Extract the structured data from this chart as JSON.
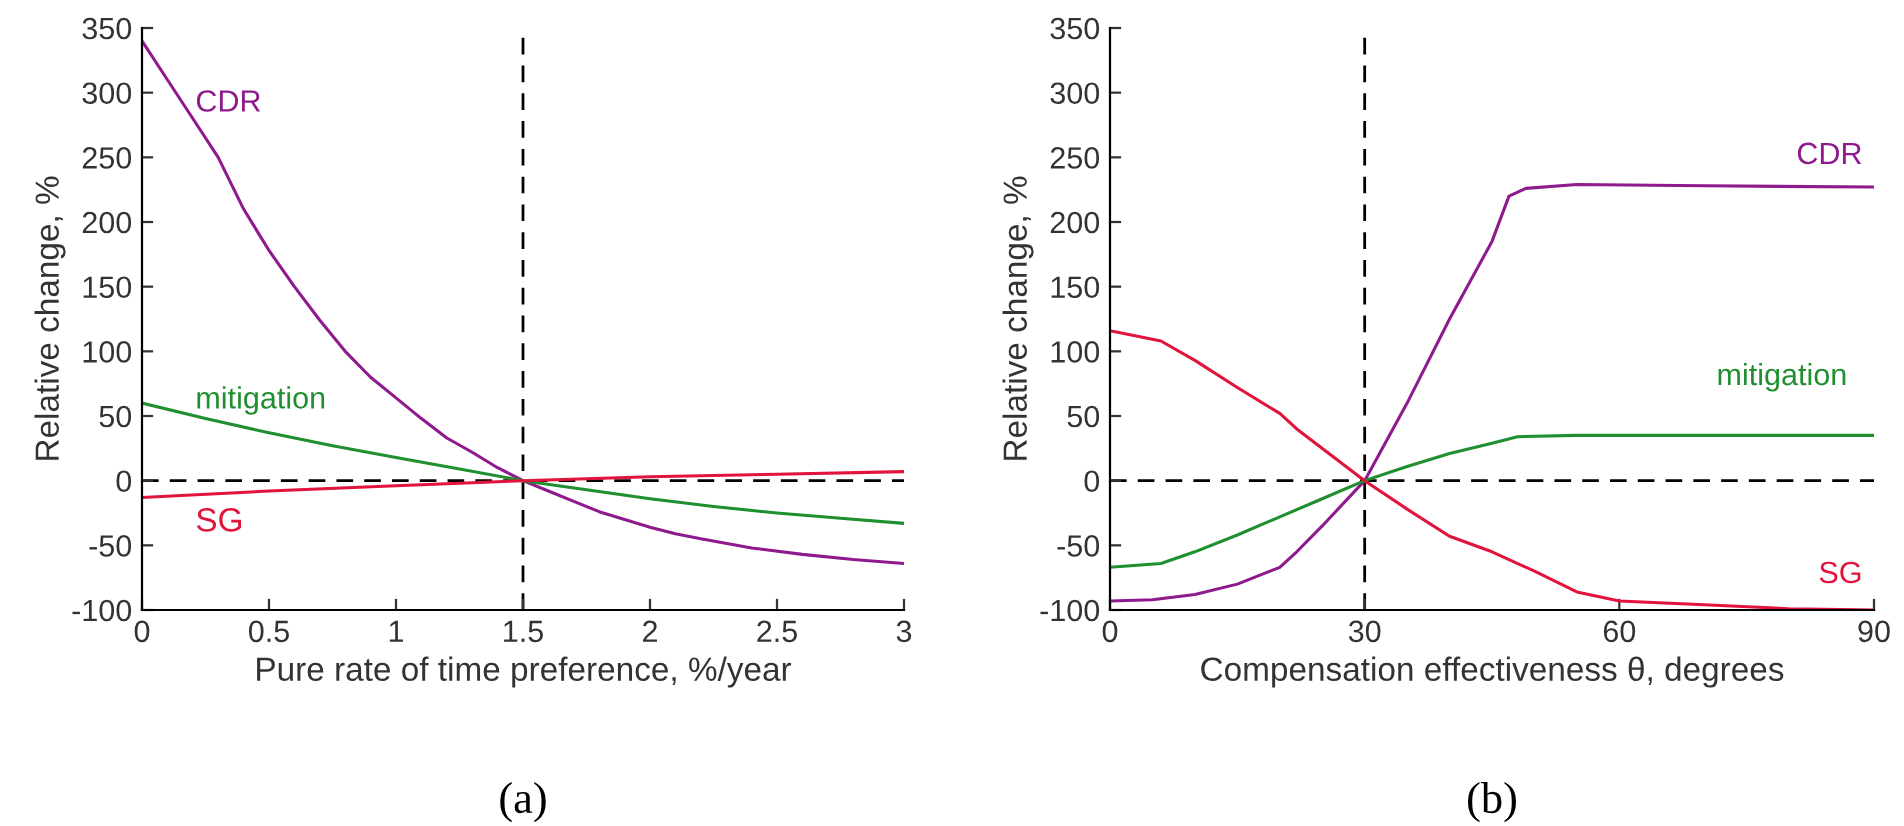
{
  "chart_data": [
    {
      "type": "line",
      "xlabel": "Pure rate of time preference, %/year",
      "ylabel": "Relative change, %",
      "xlim": [
        0,
        3
      ],
      "xticks": [
        0,
        0.5,
        1,
        1.5,
        2,
        2.5,
        3
      ],
      "ylim": [
        -100,
        350
      ],
      "yticks": [
        -100,
        -50,
        0,
        50,
        100,
        150,
        200,
        250,
        300,
        350
      ],
      "grid": false,
      "legend": false,
      "annotations": [
        "(a)"
      ],
      "ref_lines": [
        {
          "axis": "y",
          "value": 0,
          "color": "#000000",
          "line_style": "dashed"
        },
        {
          "axis": "x",
          "value": 1.5,
          "color": "#000000",
          "line_style": "dashed"
        }
      ],
      "series": [
        {
          "name": "CDR",
          "color": "#8e1a8e",
          "x": [
            0,
            0.1,
            0.2,
            0.3,
            0.4,
            0.5,
            0.6,
            0.7,
            0.8,
            0.9,
            1.0,
            1.1,
            1.2,
            1.3,
            1.4,
            1.5,
            1.6,
            1.7,
            1.8,
            1.9,
            2.0,
            2.1,
            2.2,
            2.4,
            2.6,
            2.8,
            3.0
          ],
          "values": [
            340,
            310,
            280,
            250,
            210,
            178,
            150,
            124,
            100,
            80,
            64,
            48,
            33,
            22,
            10,
            0,
            -8,
            -16,
            -24,
            -30,
            -36,
            -41,
            -45,
            -52,
            -57,
            -61,
            -64
          ]
        },
        {
          "name": "mitigation",
          "color": "#1f8f2f",
          "x": [
            0,
            0.25,
            0.5,
            0.75,
            1.0,
            1.25,
            1.5,
            1.75,
            2.0,
            2.25,
            2.5,
            2.75,
            3.0
          ],
          "values": [
            60,
            48,
            37,
            27,
            18,
            9,
            0,
            -7,
            -14,
            -20,
            -25,
            -29,
            -33
          ]
        },
        {
          "name": "SG",
          "color": "#e0143c",
          "x": [
            0,
            0.5,
            1.0,
            1.5,
            2.0,
            2.5,
            3.0
          ],
          "values": [
            -13,
            -8,
            -4,
            0,
            3,
            5,
            7
          ]
        }
      ]
    },
    {
      "type": "line",
      "xlabel": "Compensation effectiveness θ, degrees",
      "ylabel": "Relative change, %",
      "xlim": [
        0,
        90
      ],
      "xticks": [
        0,
        30,
        60,
        90
      ],
      "ylim": [
        -100,
        350
      ],
      "yticks": [
        -100,
        -50,
        0,
        50,
        100,
        150,
        200,
        250,
        300,
        350
      ],
      "grid": false,
      "legend": false,
      "annotations": [
        "(b)"
      ],
      "ref_lines": [
        {
          "axis": "y",
          "value": 0,
          "color": "#000000",
          "line_style": "dashed"
        },
        {
          "axis": "x",
          "value": 30,
          "color": "#000000",
          "line_style": "dashed"
        }
      ],
      "series": [
        {
          "name": "CDR",
          "color": "#8e1a8e",
          "x": [
            0,
            5,
            10,
            15,
            20,
            22,
            25,
            30,
            35,
            40,
            45,
            47,
            49,
            55,
            70,
            90
          ],
          "values": [
            -93,
            -92,
            -88,
            -80,
            -67,
            -55,
            -35,
            0,
            60,
            125,
            185,
            220,
            226,
            229,
            228,
            227
          ]
        },
        {
          "name": "mitigation",
          "color": "#1f8f2f",
          "x": [
            0,
            6,
            10,
            15,
            20,
            25,
            30,
            35,
            40,
            45,
            48,
            55,
            90
          ],
          "values": [
            -67,
            -64,
            -55,
            -42,
            -28,
            -14,
            0,
            11,
            21,
            29,
            34,
            35,
            35
          ]
        },
        {
          "name": "SG",
          "color": "#e0143c",
          "x": [
            0,
            6,
            10,
            15,
            20,
            22,
            30,
            35,
            40,
            45,
            50,
            55,
            60,
            70,
            80,
            90
          ],
          "values": [
            116,
            108,
            93,
            72,
            52,
            40,
            0,
            -22,
            -43,
            -55,
            -70,
            -86,
            -93,
            -96,
            -99,
            -100
          ]
        }
      ]
    }
  ]
}
